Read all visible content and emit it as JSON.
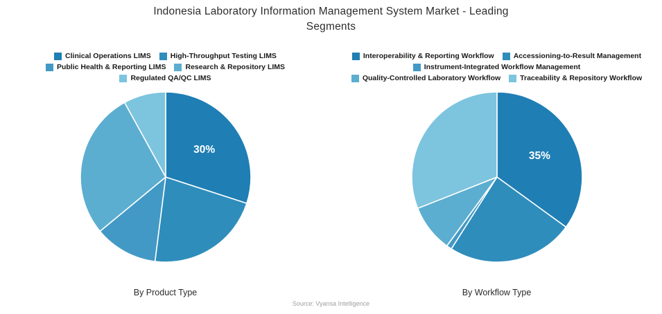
{
  "title": {
    "line1": "Indonesia Laboratory Information Management System Market - Leading",
    "line2": "Segments"
  },
  "source": "Source: Vyansa Intelligence",
  "palette": [
    "#1f7eb4",
    "#2f8dbc",
    "#4299c5",
    "#5caed0",
    "#7dc4df"
  ],
  "chart_data": [
    {
      "type": "pie",
      "caption": "By Product Type",
      "categories": [
        "Clinical Operations LIMS",
        "High-Throughput Testing LIMS",
        "Public Health & Reporting LIMS",
        "Research & Repository LIMS",
        "Regulated QA/QC LIMS"
      ],
      "values": [
        30,
        22,
        12,
        28,
        8
      ],
      "colors": [
        "#1f7eb4",
        "#2f8dbc",
        "#4299c5",
        "#5caed0",
        "#7dc4df"
      ],
      "percent_labels": [
        "30%",
        "",
        "",
        "",
        ""
      ],
      "legend_rows": [
        [
          0,
          1
        ],
        [
          2,
          3
        ],
        [
          4
        ]
      ],
      "start_angle_deg": 0,
      "direction": "clockwise",
      "legend_position": "top"
    },
    {
      "type": "pie",
      "caption": "By Workflow Type",
      "categories": [
        "Interoperability & Reporting Workflow",
        "Accessioning-to-Result Management",
        "Instrument-Integrated Workflow Management",
        "Quality-Controlled Laboratory Workflow",
        "Traceability & Repository Workflow"
      ],
      "values": [
        35,
        24,
        1,
        9,
        31
      ],
      "colors": [
        "#1f7eb4",
        "#2f8dbc",
        "#4299c5",
        "#5caed0",
        "#7dc4df"
      ],
      "percent_labels": [
        "35%",
        "",
        "",
        "",
        ""
      ],
      "legend_rows": [
        [
          0,
          1
        ],
        [
          2
        ],
        [
          3,
          4
        ]
      ],
      "start_angle_deg": 0,
      "direction": "clockwise",
      "legend_position": "top"
    }
  ]
}
